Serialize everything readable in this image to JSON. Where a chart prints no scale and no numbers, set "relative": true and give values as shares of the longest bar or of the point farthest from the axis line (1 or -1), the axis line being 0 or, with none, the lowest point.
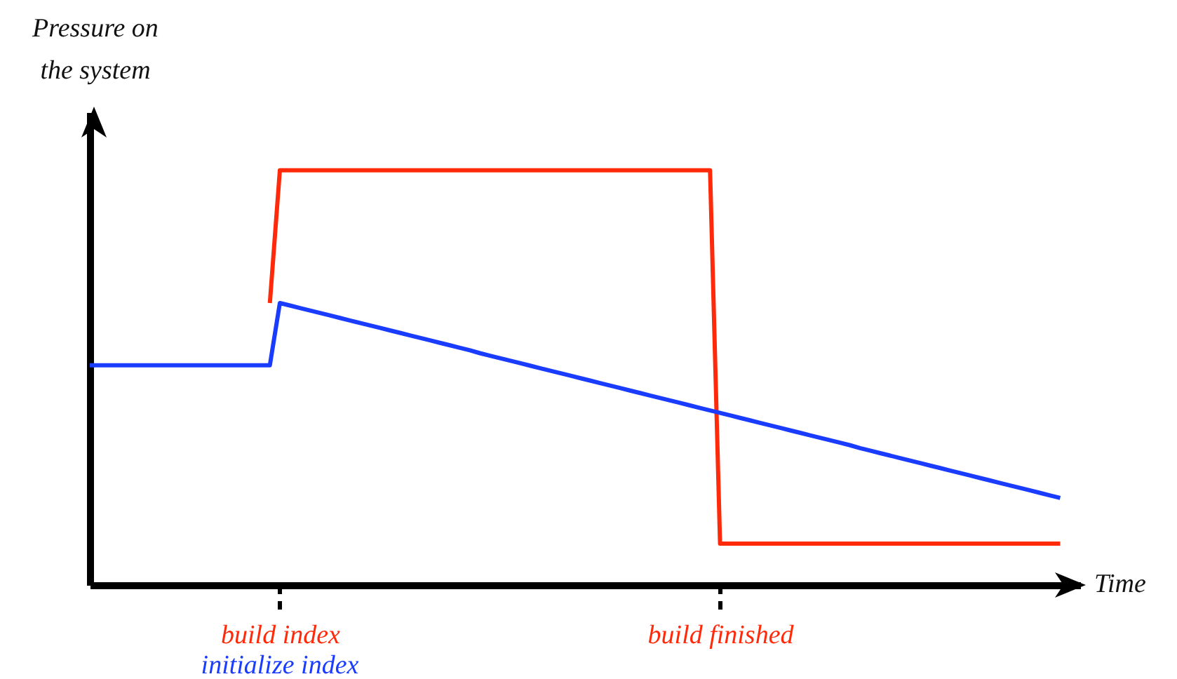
{
  "chart_data": {
    "type": "line",
    "relative": true,
    "xlabel": "Time",
    "ylabel": "Pressure on the system",
    "categories": [
      null,
      null,
      null,
      null,
      null,
      null,
      null,
      null,
      null,
      null,
      null,
      null,
      null,
      null,
      null,
      null,
      null,
      null,
      null,
      "build index",
      null,
      null,
      null,
      null,
      null,
      null,
      null,
      null,
      null,
      null,
      null,
      null,
      null,
      null,
      null,
      null,
      null,
      null,
      null,
      null,
      null,
      null,
      null,
      null,
      null,
      null,
      null,
      null,
      null,
      null,
      null,
      null,
      null,
      null,
      null,
      null,
      null,
      null,
      null,
      null,
      null,
      null,
      null,
      "build finished",
      null,
      null,
      null,
      null,
      null,
      null,
      null,
      null,
      null,
      null,
      null,
      null,
      null,
      null,
      null,
      null,
      null,
      null,
      null,
      null,
      null,
      null,
      null,
      null,
      null,
      null,
      null,
      null,
      null,
      null,
      null,
      null,
      null,
      null
    ],
    "marker": "none",
    "line_style": "solid",
    "series": [
      {
        "color": "#ff2a0a",
        "values": [
          null,
          null,
          null,
          null,
          null,
          null,
          null,
          null,
          null,
          null,
          null,
          null,
          null,
          null,
          null,
          null,
          null,
          null,
          0.68,
          1,
          1,
          1,
          1,
          1,
          1,
          1,
          1,
          1,
          1,
          1,
          1,
          1,
          1,
          1,
          1,
          1,
          1,
          1,
          1,
          1,
          1,
          1,
          1,
          1,
          1,
          1,
          1,
          1,
          1,
          1,
          1,
          1,
          1,
          1,
          1,
          1,
          1,
          1,
          1,
          1,
          1,
          1,
          1,
          0.1,
          0.1,
          0.1,
          0.1,
          0.1,
          0.1,
          0.1,
          0.1,
          0.1,
          0.1,
          0.1,
          0.1,
          0.1,
          0.1,
          0.1,
          0.1,
          0.1,
          0.1,
          0.1,
          0.1,
          0.1,
          0.1,
          0.1,
          0.1,
          0.1,
          0.1,
          0.1,
          0.1,
          0.1,
          0.1,
          0.1,
          0.1,
          0.1,
          0.1,
          0.1
        ]
      },
      {
        "color": "#1a3cff",
        "values": [
          0.53,
          0.53,
          0.53,
          0.53,
          0.53,
          0.53,
          0.53,
          0.53,
          0.53,
          0.53,
          0.53,
          0.53,
          0.53,
          0.53,
          0.53,
          0.53,
          0.53,
          0.53,
          0.53,
          0.68,
          0.674,
          0.668,
          0.662,
          0.656,
          0.65,
          0.644,
          0.638,
          0.632,
          0.626,
          0.62,
          0.614,
          0.608,
          0.602,
          0.596,
          0.59,
          0.584,
          0.578,
          0.572,
          0.566,
          0.559,
          0.553,
          0.547,
          0.541,
          0.535,
          0.529,
          0.523,
          0.517,
          0.511,
          0.505,
          0.499,
          0.493,
          0.487,
          0.481,
          0.475,
          0.469,
          0.463,
          0.457,
          0.451,
          0.445,
          0.439,
          0.433,
          0.427,
          0.421,
          0.415,
          0.409,
          0.403,
          0.397,
          0.391,
          0.385,
          0.379,
          0.373,
          0.367,
          0.361,
          0.355,
          0.349,
          0.343,
          0.337,
          0.33,
          0.324,
          0.318,
          0.312,
          0.306,
          0.3,
          0.294,
          0.288,
          0.282,
          0.276,
          0.27,
          0.264,
          0.258,
          0.252,
          0.246,
          0.24,
          0.234,
          0.228,
          0.222,
          0.216,
          0.21
        ]
      }
    ],
    "annotations": [
      "initialize index"
    ]
  }
}
